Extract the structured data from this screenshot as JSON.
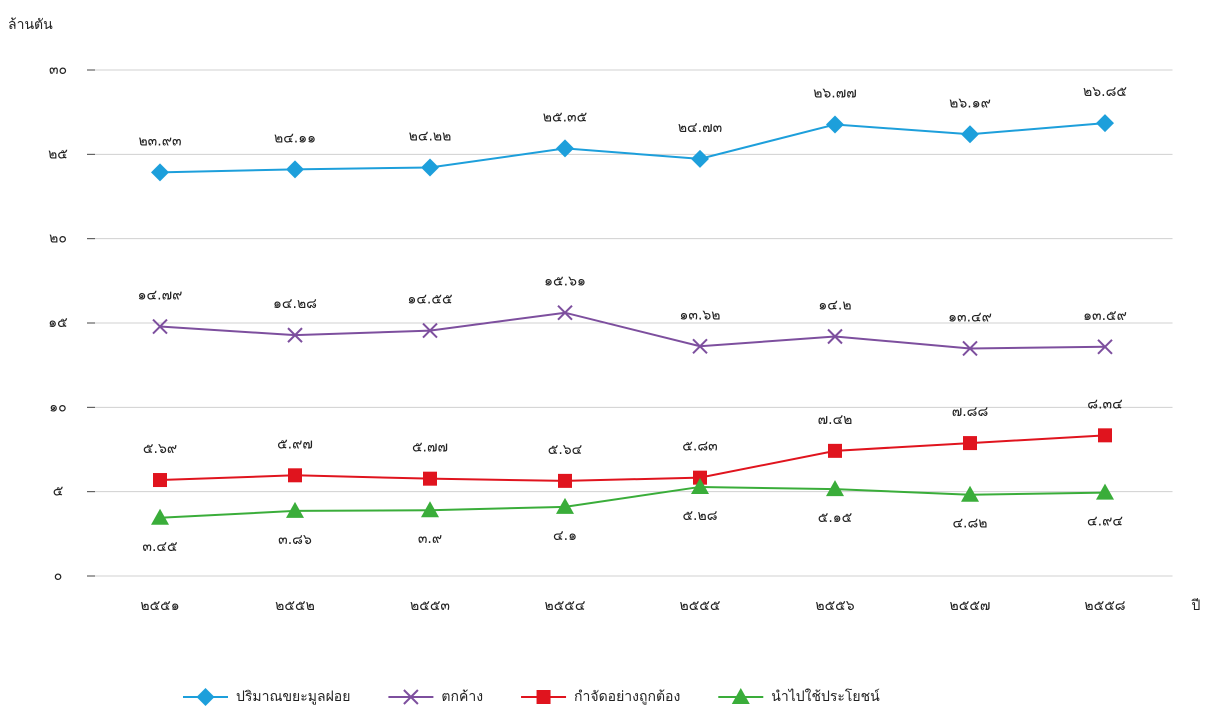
{
  "chart_data": {
    "type": "line",
    "y_axis_label": "ล้านตัน",
    "x_axis_label": "ปี",
    "categories": [
      "๒๕๕๑",
      "๒๕๕๒",
      "๒๕๕๓",
      "๒๕๕๔",
      "๒๕๕๕",
      "๒๕๕๖",
      "๒๕๕๗",
      "๒๕๕๘"
    ],
    "ylim": [
      0,
      30
    ],
    "yticks": [
      {
        "value": 0,
        "label": "๐"
      },
      {
        "value": 5,
        "label": "๕"
      },
      {
        "value": 10,
        "label": "๑๐"
      },
      {
        "value": 15,
        "label": "๑๕"
      },
      {
        "value": 20,
        "label": "๒๐"
      },
      {
        "value": 25,
        "label": "๒๕"
      },
      {
        "value": 30,
        "label": "๓๐"
      }
    ],
    "grid": true,
    "legend": "bottom",
    "series": [
      {
        "name": "ปริมาณขยะมูลฝอย",
        "color": "#1d9fdb",
        "marker": "diamond",
        "label_position": "above",
        "values": [
          23.93,
          24.11,
          24.22,
          25.35,
          24.73,
          26.77,
          26.19,
          26.85
        ],
        "value_labels": [
          "๒๓.๙๓",
          "๒๔.๑๑",
          "๒๔.๒๒",
          "๒๕.๓๕",
          "๒๔.๗๓",
          "๒๖.๗๗",
          "๒๖.๑๙",
          "๒๖.๘๕"
        ]
      },
      {
        "name": "ตกค้าง",
        "color": "#7d4f9e",
        "marker": "x",
        "label_position": "above",
        "values": [
          14.79,
          14.28,
          14.55,
          15.61,
          13.62,
          14.2,
          13.49,
          13.59
        ],
        "value_labels": [
          "๑๔.๗๙",
          "๑๔.๒๘",
          "๑๔.๕๕",
          "๑๕.๖๑",
          "๑๓.๖๒",
          "๑๔.๒",
          "๑๓.๔๙",
          "๑๓.๕๙"
        ]
      },
      {
        "name": "กำจัดอย่างถูกต้อง",
        "color": "#e0141e",
        "marker": "square",
        "label_position": "above",
        "values": [
          5.69,
          5.97,
          5.77,
          5.64,
          5.83,
          7.42,
          7.88,
          8.34
        ],
        "value_labels": [
          "๕.๖๙",
          "๕.๙๗",
          "๕.๗๗",
          "๕.๖๔",
          "๕.๘๓",
          "๗.๔๒",
          "๗.๘๘",
          "๘.๓๔"
        ]
      },
      {
        "name": "นำไปใช้ประโยชน์",
        "color": "#3aad3a",
        "marker": "triangle",
        "label_position": "below",
        "values": [
          3.45,
          3.86,
          3.9,
          4.1,
          5.28,
          5.15,
          4.82,
          4.94
        ],
        "value_labels": [
          "๓.๔๕",
          "๓.๘๖",
          "๓.๙",
          "๔.๑",
          "๕.๒๘",
          "๕.๑๕",
          "๔.๘๒",
          "๔.๙๔"
        ]
      }
    ]
  }
}
